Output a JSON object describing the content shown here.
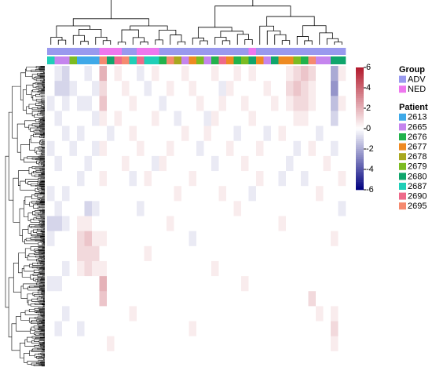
{
  "chart_data": {
    "type": "heatmap",
    "zlim": [
      -6,
      6
    ],
    "zticks": [
      6,
      4,
      2,
      0,
      -2,
      -4,
      -6
    ],
    "colors": {
      "low": "#00007f",
      "mid": "#ffffff",
      "high": "#b2182b"
    },
    "column_groups": [
      "ADV",
      "ADV",
      "ADV",
      "ADV",
      "ADV",
      "ADV",
      "ADV",
      "NED",
      "NED",
      "NED",
      "ADV",
      "ADV",
      "NED",
      "NED",
      "NED",
      "ADV",
      "ADV",
      "ADV",
      "ADV",
      "ADV",
      "ADV",
      "ADV",
      "ADV",
      "ADV",
      "ADV",
      "ADV",
      "ADV",
      "NED",
      "ADV",
      "ADV",
      "ADV",
      "ADV",
      "ADV",
      "ADV",
      "ADV",
      "ADV",
      "ADV",
      "ADV",
      "ADV",
      "ADV"
    ],
    "column_patients": [
      "2687",
      "2665",
      "2665",
      "2679",
      "2613",
      "2613",
      "2613",
      "2695",
      "2680",
      "2690",
      "2695",
      "2687",
      "2690",
      "2687",
      "2687",
      "2676",
      "2695",
      "2678",
      "2665",
      "2677",
      "2679",
      "2665",
      "2676",
      "2690",
      "2677",
      "2676",
      "2679",
      "2680",
      "2677",
      "2665",
      "2680",
      "2677",
      "2677",
      "2679",
      "2676",
      "2695",
      "2665",
      "2665",
      "2680",
      "2680"
    ],
    "legend": {
      "group_title": "Group",
      "groups": [
        {
          "name": "ADV",
          "color": "#9999ee"
        },
        {
          "name": "NED",
          "color": "#ee77ee"
        }
      ],
      "patient_title": "Patient",
      "patients": [
        {
          "name": "2613",
          "color": "#3fa9e8"
        },
        {
          "name": "2665",
          "color": "#c585ee"
        },
        {
          "name": "2676",
          "color": "#22b24c"
        },
        {
          "name": "2677",
          "color": "#ee8a22"
        },
        {
          "name": "2678",
          "color": "#a8a820"
        },
        {
          "name": "2679",
          "color": "#7cbb22"
        },
        {
          "name": "2680",
          "color": "#10a56c"
        },
        {
          "name": "2687",
          "color": "#20cfb8"
        },
        {
          "name": "2690",
          "color": "#ee6a8a"
        },
        {
          "name": "2695",
          "color": "#f58a70"
        }
      ]
    },
    "z": [
      [
        0,
        -0.5,
        -1,
        0,
        0,
        -0.5,
        0,
        2,
        0,
        0.5,
        0,
        0,
        -0.5,
        0,
        0.5,
        0,
        0,
        0,
        0.5,
        0,
        0,
        0,
        0.5,
        0,
        0,
        0.5,
        0,
        0.5,
        0,
        0,
        0,
        0,
        0.5,
        1,
        1.5,
        1,
        0,
        0,
        -2,
        0.5
      ],
      [
        0,
        -1,
        -1,
        -0.5,
        0,
        0,
        -0.5,
        1,
        0,
        0,
        0.5,
        0,
        0,
        -0.5,
        0,
        0,
        0.5,
        0,
        0,
        0.5,
        0,
        0,
        0,
        -0.5,
        0.5,
        0,
        0,
        0,
        0,
        0.5,
        0,
        0,
        1,
        1.5,
        1,
        0.5,
        0,
        0,
        -2.5,
        0
      ],
      [
        -0.5,
        0,
        -0.5,
        0,
        -0.5,
        -0.5,
        0,
        1.5,
        0,
        0,
        0,
        0.5,
        0,
        0,
        0,
        -0.5,
        0,
        0,
        0,
        0,
        0.5,
        0,
        0,
        0.5,
        0,
        0,
        0.5,
        0,
        0,
        0,
        0.5,
        0,
        0.5,
        1,
        1,
        0.5,
        0,
        0,
        -1.5,
        0.5
      ],
      [
        0,
        -0.5,
        0,
        0,
        0,
        0,
        -0.5,
        0.5,
        0,
        0.5,
        0,
        0,
        0,
        0,
        0.5,
        0,
        0,
        -0.5,
        0,
        0,
        0,
        -0.5,
        0.5,
        0,
        0,
        0,
        0,
        0.5,
        0,
        0,
        0,
        0,
        0,
        0.5,
        0.5,
        0,
        0,
        0,
        -1,
        0
      ],
      [
        0,
        0,
        -0.5,
        0,
        -0.5,
        0,
        0,
        0,
        -0.5,
        0,
        0,
        0.5,
        0,
        0,
        0,
        0,
        0,
        0,
        0.5,
        0,
        0,
        0.5,
        0,
        0,
        0,
        -0.5,
        0,
        0,
        0,
        -0.5,
        0,
        0.5,
        0,
        0,
        0,
        0,
        -0.5,
        0,
        0,
        0
      ],
      [
        -0.5,
        0,
        0,
        -0.5,
        0,
        0,
        -0.5,
        0.5,
        0,
        0,
        0,
        0,
        0.5,
        0,
        0,
        0,
        0.5,
        0,
        0,
        0,
        -0.5,
        0,
        0,
        0,
        0.5,
        0,
        0,
        0,
        0.5,
        0,
        0,
        0,
        0,
        -0.5,
        0,
        0.5,
        0,
        0,
        -0.5,
        0
      ],
      [
        0,
        -0.5,
        0,
        0,
        0,
        -0.5,
        0,
        0,
        0,
        0,
        0.5,
        0,
        0,
        0,
        -0.5,
        0.5,
        0,
        0,
        0,
        0,
        0,
        0,
        -0.5,
        0,
        0,
        0,
        0.5,
        0,
        0,
        0,
        0,
        0,
        -0.5,
        0,
        0,
        0,
        0,
        0.5,
        0,
        0
      ],
      [
        0,
        0,
        0,
        0,
        -0.5,
        0,
        0,
        0.5,
        0,
        0,
        0,
        -0.5,
        0,
        0.5,
        0,
        0,
        0,
        0,
        0,
        0.5,
        0,
        0,
        0,
        0,
        0,
        0,
        0,
        0,
        0.5,
        0,
        0,
        -0.5,
        0,
        0,
        -0.5,
        0,
        0,
        0,
        0,
        0.5
      ],
      [
        -0.5,
        0,
        -0.5,
        0,
        0,
        0,
        0,
        0,
        0,
        0,
        0,
        0,
        0,
        0,
        0,
        0,
        0,
        0.5,
        0,
        0,
        0,
        0,
        0,
        0.5,
        0,
        0,
        0,
        -0.5,
        0,
        0,
        0,
        0,
        0,
        0,
        0,
        0,
        0.5,
        0,
        0,
        0
      ],
      [
        0,
        -0.5,
        0,
        0,
        0,
        -1,
        -0.5,
        0,
        0,
        0,
        0,
        0,
        -0.5,
        0,
        0,
        0,
        0,
        0,
        0,
        0,
        0,
        0,
        0,
        0,
        0,
        0.5,
        0,
        0,
        0,
        0,
        0,
        0,
        0,
        0,
        0,
        0,
        0,
        0,
        0,
        -0.5
      ],
      [
        -1,
        -1,
        -0.5,
        0,
        0.5,
        0.5,
        0,
        0,
        0,
        0,
        0,
        0,
        0,
        0,
        0,
        0,
        0.5,
        0,
        0,
        0,
        0,
        0,
        0,
        0,
        0,
        0,
        0,
        0,
        0,
        0,
        0,
        0.5,
        0,
        0,
        0,
        0,
        0,
        0,
        0,
        0
      ],
      [
        -0.5,
        0,
        0,
        0,
        1,
        1.5,
        0.5,
        0.5,
        0,
        0,
        0,
        0,
        0,
        0,
        0,
        0,
        0,
        0,
        0,
        -0.5,
        0,
        0,
        0,
        0,
        0,
        0,
        0,
        0,
        0,
        0,
        0,
        0,
        0,
        0,
        0,
        0,
        0,
        0,
        0.5,
        0
      ],
      [
        0,
        0,
        0,
        0,
        1,
        1,
        1,
        0,
        0,
        0,
        0,
        0,
        0,
        0.5,
        0,
        0,
        0,
        0,
        0,
        0,
        0,
        0,
        0,
        0,
        0,
        0,
        0,
        0,
        0,
        0,
        0,
        0,
        0,
        0,
        0,
        0,
        0,
        0,
        0,
        0
      ],
      [
        0,
        0,
        -0.5,
        0,
        0.5,
        1,
        0.5,
        0.5,
        0,
        0,
        0,
        0,
        0,
        0,
        0,
        0,
        0,
        0,
        0,
        0,
        0,
        0,
        0.5,
        0,
        0,
        0,
        0,
        0,
        0,
        0,
        0,
        0,
        0,
        0,
        0,
        0,
        0,
        0,
        0,
        0
      ],
      [
        -0.5,
        -0.5,
        0,
        0,
        0,
        0,
        0,
        2,
        0,
        0,
        0,
        0,
        0,
        0,
        0,
        0,
        0,
        0,
        0,
        0,
        0,
        0,
        0,
        0,
        0,
        0,
        0.5,
        0,
        0,
        0,
        0,
        0,
        0,
        0,
        0,
        0,
        0,
        0,
        0,
        0
      ],
      [
        0,
        0,
        0,
        0,
        0,
        0,
        0,
        1.5,
        0,
        0,
        0,
        0,
        0,
        0,
        0,
        0,
        0,
        0,
        0,
        0,
        0,
        0,
        0,
        0,
        0,
        0,
        0,
        0,
        0,
        0,
        0,
        0,
        0,
        0,
        0,
        1,
        0,
        0,
        0,
        0
      ],
      [
        0,
        0,
        -0.5,
        0,
        0,
        0,
        0,
        0,
        0,
        0,
        0,
        0.5,
        0,
        0,
        0,
        0,
        0,
        0,
        0,
        0,
        0,
        0,
        0,
        0,
        0,
        0,
        0,
        0,
        0,
        0,
        0,
        0,
        0,
        0,
        0,
        0,
        0.5,
        0,
        0.5,
        0
      ],
      [
        0,
        -0.5,
        0,
        0,
        -0.5,
        0,
        0,
        0,
        0,
        0,
        0,
        0,
        0,
        0,
        0,
        0,
        0,
        0,
        0,
        0.5,
        0,
        0,
        0,
        0,
        0,
        0,
        0,
        0,
        0,
        0,
        0,
        0,
        0,
        0,
        0,
        0,
        0,
        0,
        1,
        0
      ],
      [
        0,
        0,
        0,
        0,
        0,
        0,
        0,
        0,
        0.5,
        0,
        0,
        0,
        0,
        0,
        0,
        0,
        0,
        0,
        0,
        0,
        0,
        0,
        0,
        0,
        0,
        0,
        0,
        0,
        0,
        0,
        0,
        0,
        0,
        0,
        0,
        0,
        0,
        0,
        0.5,
        0
      ],
      [
        0,
        0,
        0,
        0,
        0,
        0,
        0,
        0,
        0,
        0,
        0,
        0,
        0,
        0,
        0,
        0,
        0,
        0,
        0,
        0,
        0,
        0,
        0,
        0,
        0,
        0,
        0,
        0,
        0,
        0,
        0,
        0,
        0,
        0,
        0,
        0,
        0,
        0,
        0,
        0
      ]
    ]
  }
}
